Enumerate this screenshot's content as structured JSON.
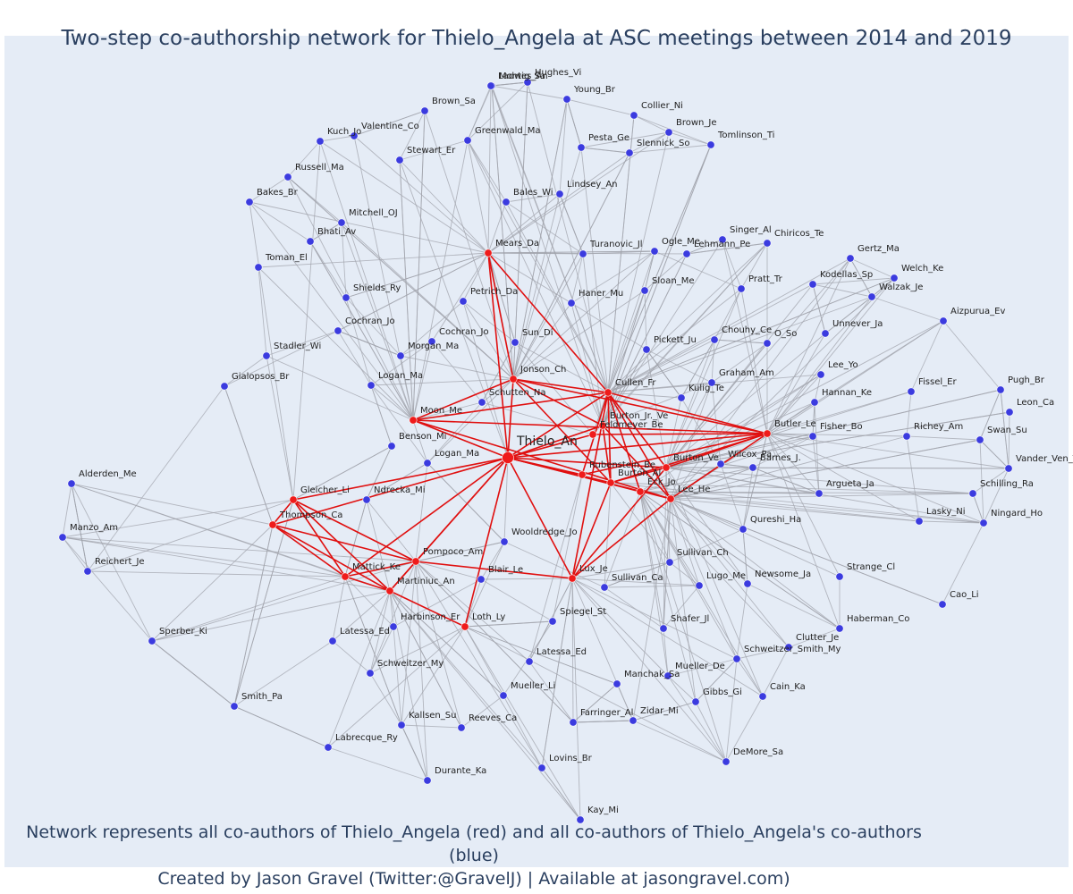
{
  "title": "Two-step co-authorship network for Thielo_Angela at ASC meetings between 2014 and 2019",
  "caption": {
    "line1": "Network represents all co-authors of Thielo_Angela (red) and all co-authors of Thielo_Angela's co-authors (blue)",
    "line2": "Created by Jason Gravel (Twitter:@GravelJ) | Available at jasongravel.com)"
  },
  "colors": {
    "plot_bg": "#e5ecf6",
    "red_node": "#ef1b1b",
    "blue_node": "#3b3bdf",
    "red_edge": "#e01010",
    "gray_edge": "#a0a3ab",
    "text": "#2a3f5f"
  },
  "center": "Thielo_An",
  "red_nodes": [
    "Thielo_An",
    "Mears_Da",
    "Jonson_Ch",
    "Cullen_Fr",
    "Moon_Me",
    "Burton_Jr._Ve",
    "Feldmeyer_Be",
    "Butler_Le",
    "Burton_Ve",
    "Rubenstein_Be",
    "Burton_Al",
    "Eck_Jo",
    "Lee_He",
    "Gleicher_Li",
    "Thompson_Ca",
    "Pompoco_Am",
    "Mattick_Ke",
    "Martiniuc_An",
    "Loth_Ly",
    "Lux_Je"
  ],
  "blue_nodes": [
    "Montes_An",
    "Hughes_Vi",
    "Ladwig_Sa",
    "Young_Br",
    "Brown_Sa",
    "Collier_Ni",
    "Valentine_Co",
    "Kuch_Jo",
    "Greenwald_Ma",
    "Brown_Je",
    "Pesta_Ge",
    "Slennick_So",
    "Tomlinson_Ti",
    "Stewart_Er",
    "Russell_Ma",
    "Bakes_Br",
    "Bales_Wi",
    "Lindsey_An",
    "Mitchell_OJ",
    "Bhati_Av",
    "Singer_Al",
    "Chiricos_Te",
    "Turanovic_Jl",
    "Ogle_Me",
    "Lehmann_Pe",
    "Gertz_Ma",
    "Toman_El",
    "Welch_Ke",
    "Kodellas_Sp",
    "Walzak_Je",
    "Pratt_Tr",
    "Shields_Ry",
    "Petrich_Da",
    "Sloan_Me",
    "Haner_Mu",
    "Aizpurua_Ev",
    "Unnever_Ja",
    "Cochran_Jo",
    "Cochran_Jo",
    "Sun_Di",
    "Chouhy_Ce",
    "O_So",
    "Morgan_Ma",
    "Stadler_Wi",
    "Pickett_Ju",
    "Lee_Yo",
    "Logan_Ma",
    "Graham_Am",
    "Gialopsos_Br",
    "Schutten_Na",
    "Kulig_Te",
    "Fissel_Er",
    "Hannan_Ke",
    "Pugh_Br",
    "Leon_Ca",
    "Benson_Mi",
    "Fisher_Bo",
    "Richey_Am",
    "Swan_Su",
    "Logan_Ma",
    "Wilcox_Pa",
    "Barnes_J.",
    "Vander_Ven_T",
    "Alderden_Me",
    "Argueta_Ja",
    "Schilling_Ra",
    "Ndrecka_Mi",
    "Lasky_Ni",
    "Ningard_Ho",
    "Manzo_Am",
    "Qureshi_Ha",
    "Wooldredge_Jo",
    "Reichert_Je",
    "Sullivan_Ch",
    "Blair_Le",
    "Strange_Cl",
    "Lugo_Me",
    "Newsome_Ja",
    "Sullivan_Ca",
    "Cao_Li",
    "Harbinson_Er",
    "Spiegel_St",
    "Sperber_Ki",
    "Shafer_Jl",
    "Haberman_Co",
    "Latessa_Ed",
    "Clutter_Je",
    "Schweitzer_Smith_My",
    "Latessa_Ed",
    "Schweitzer_My",
    "Mueller_De",
    "Manchak_Sa",
    "Mueller_Li",
    "Cain_Ka",
    "Gibbs_Gi",
    "Smith_Pa",
    "Zidar_Mi",
    "Farringer_Al",
    "Kallsen_Su",
    "Reeves_Ca",
    "DeMore_Sa",
    "Labrecque_Ry",
    "Lovins_Br",
    "Durante_Ka",
    "Kay_Mi"
  ]
}
